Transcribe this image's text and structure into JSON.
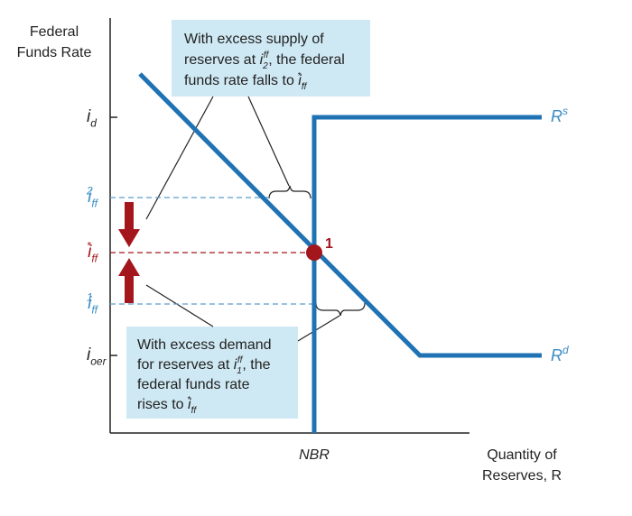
{
  "y_axis_title": [
    "Federal",
    "Funds Rate"
  ],
  "levels": [
    {
      "base": "i",
      "sub": "d"
    },
    {
      "base": "i",
      "sub": "ff",
      "sup": "2"
    },
    {
      "base": "i",
      "sub": "ff",
      "sup": "*"
    },
    {
      "base": "i",
      "sub": "ff",
      "sup": "1"
    },
    {
      "base": "i",
      "sub": "oer"
    }
  ],
  "curves": {
    "supply": {
      "base": "R",
      "sup": "s"
    },
    "demand": {
      "base": "R",
      "sup": "d"
    }
  },
  "equilibrium_label": "1",
  "x_marker": "NBR",
  "x_axis_title": [
    "Quantity of",
    "Reserves, R"
  ],
  "callout_supply": [
    [
      "With excess supply of"
    ],
    [
      "reserves at ",
      {
        "base": "i",
        "sub": "2",
        "sup": "ff"
      },
      ", the federal"
    ],
    [
      "funds rate falls to ",
      {
        "base": "i",
        "sub": "ff",
        "sup": "*"
      },
      "."
    ]
  ],
  "callout_demand": [
    [
      "With excess demand"
    ],
    [
      "for reserves at ",
      {
        "base": "i",
        "sub": "1",
        "sup": "ff"
      },
      ", the"
    ],
    [
      "federal funds rate"
    ],
    [
      "rises to ",
      {
        "base": "i",
        "sub": "ff",
        "sup": "*"
      },
      "."
    ]
  ]
}
